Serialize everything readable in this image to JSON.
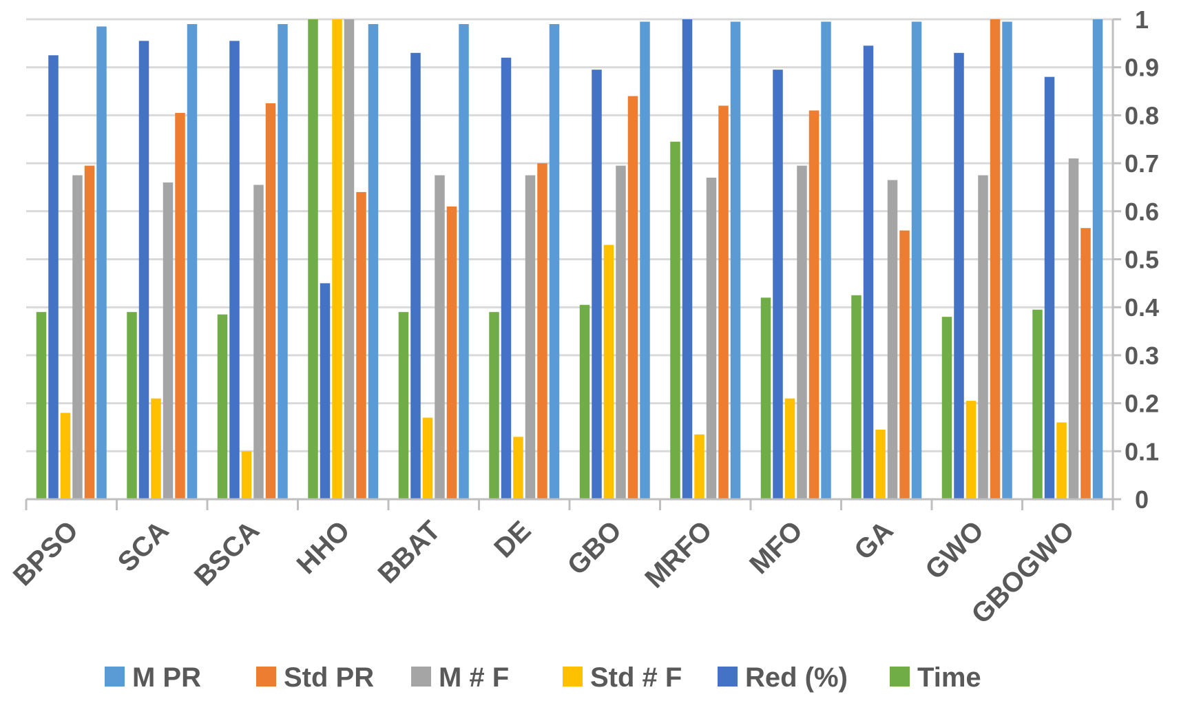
{
  "chart_data": {
    "type": "bar",
    "title": "",
    "xlabel": "",
    "ylabel": "",
    "ylim": [
      0,
      1
    ],
    "grid": true,
    "y_axis_side": "right",
    "yticks": [
      "0",
      "0.1",
      "0.2",
      "0.3",
      "0.4",
      "0.5",
      "0.6",
      "0.7",
      "0.8",
      "0.9",
      "1"
    ],
    "categories": [
      "BPSO",
      "SCA",
      "BSCA",
      "HHO",
      "BBAT",
      "DE",
      "GBO",
      "MRFO",
      "MFO",
      "GA",
      "GWO",
      "GBOGWO"
    ],
    "legend_position": "bottom",
    "series": [
      {
        "name": "Time",
        "color": "#70AD47",
        "values": [
          0.39,
          0.39,
          0.385,
          1.0,
          0.39,
          0.39,
          0.405,
          0.745,
          0.42,
          0.425,
          0.38,
          0.395
        ]
      },
      {
        "name": "Red (%)",
        "color": "#4472C4",
        "values": [
          0.925,
          0.955,
          0.955,
          0.45,
          0.93,
          0.92,
          0.895,
          1.0,
          0.895,
          0.945,
          0.93,
          0.88
        ]
      },
      {
        "name": "Std # F",
        "color": "#FFC000",
        "values": [
          0.18,
          0.21,
          0.1,
          1.0,
          0.17,
          0.13,
          0.53,
          0.135,
          0.21,
          0.145,
          0.205,
          0.16
        ]
      },
      {
        "name": "M # F",
        "color": "#A5A5A5",
        "values": [
          0.675,
          0.66,
          0.655,
          1.0,
          0.675,
          0.675,
          0.695,
          0.67,
          0.695,
          0.665,
          0.675,
          0.71
        ]
      },
      {
        "name": "Std PR",
        "color": "#ED7D31",
        "values": [
          0.695,
          0.805,
          0.825,
          0.64,
          0.61,
          0.7,
          0.84,
          0.82,
          0.81,
          0.56,
          1.0,
          0.565
        ]
      },
      {
        "name": "M PR",
        "color": "#5B9BD5",
        "values": [
          0.985,
          0.99,
          0.99,
          0.99,
          0.99,
          0.99,
          0.995,
          0.995,
          0.995,
          0.995,
          0.995,
          1.0
        ]
      }
    ],
    "legend_order": [
      "M PR",
      "Std PR",
      "M # F",
      "Std # F",
      "Red (%)",
      "Time"
    ]
  }
}
